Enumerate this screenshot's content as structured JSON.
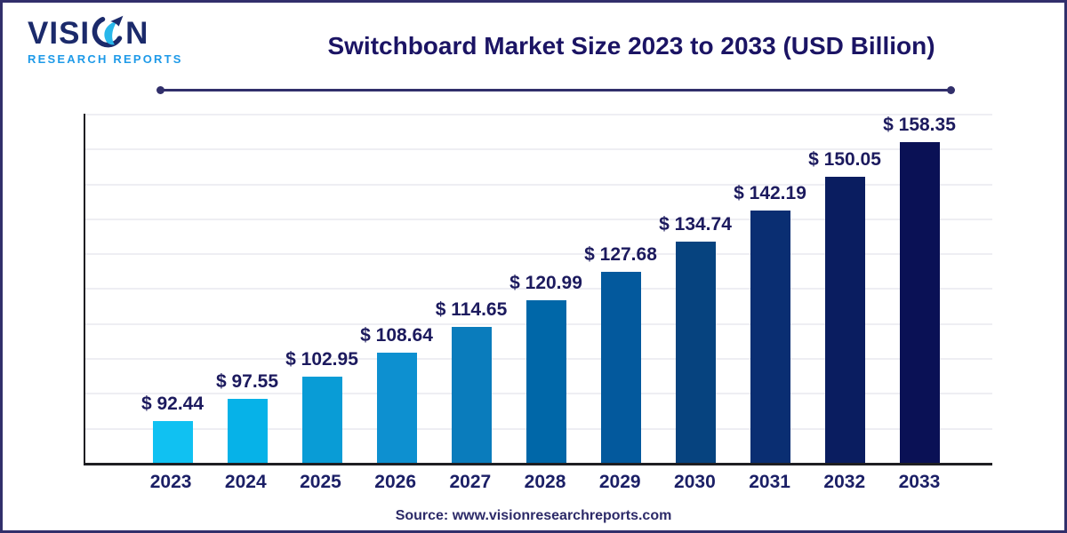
{
  "frame": {
    "border_color": "#312f6b",
    "background": "#ffffff"
  },
  "logo": {
    "text_before_icon": "VISI",
    "text_after_icon": "N",
    "subtitle": "RESEARCH REPORTS",
    "wordmark_color": "#1b2a6b",
    "subtitle_color": "#1e9ae8",
    "icon_cyan": "#29b7ea",
    "icon_navy": "#1b2a6b"
  },
  "header": {
    "title": "Switchboard Market Size 2023 to 2033 (USD Billion)",
    "title_color": "#1b1464",
    "divider_color": "#312f6b"
  },
  "chart_data": {
    "type": "bar",
    "title": "Switchboard Market Size 2023 to 2033 (USD Billion)",
    "unit": "USD Billion",
    "categories": [
      "2023",
      "2024",
      "2025",
      "2026",
      "2027",
      "2028",
      "2029",
      "2030",
      "2031",
      "2032",
      "2033"
    ],
    "values": [
      92.44,
      97.55,
      102.95,
      108.64,
      114.65,
      120.99,
      127.68,
      134.74,
      142.19,
      150.05,
      158.35
    ],
    "value_labels": [
      "$ 92.44",
      "$ 97.55",
      "$ 102.95",
      "$ 108.64",
      "$ 114.65",
      "$ 120.99",
      "$ 127.68",
      "$ 134.74",
      "$ 142.19",
      "$ 150.05",
      "$ 158.35"
    ],
    "bar_colors": [
      "#10c1f2",
      "#06b2e8",
      "#099cd6",
      "#0d90d0",
      "#0a7cbc",
      "#0067a8",
      "#03599d",
      "#06437f",
      "#0a2e72",
      "#0a1d60",
      "#0a1155"
    ],
    "ylim": [
      82.5,
      165
    ],
    "grid": "horizontal",
    "grid_intervals": 10,
    "legend": "none",
    "value_label_color": "#1c1a5e",
    "axis_label_color": "#1b1f66"
  },
  "footer": {
    "source": "Source: www.visionresearchreports.com",
    "color": "#2c2a68"
  }
}
